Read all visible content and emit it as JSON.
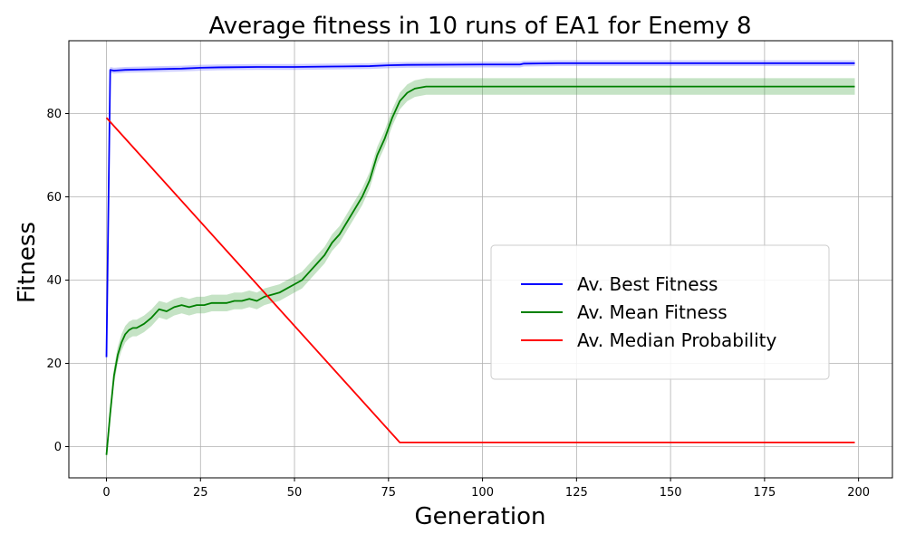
{
  "chart_data": {
    "type": "line",
    "title": "Average fitness in 10 runs of EA1 for Enemy 8",
    "xlabel": "Generation",
    "ylabel": "Fitness",
    "xlim": [
      -10,
      209
    ],
    "ylim": [
      -7.5,
      97.5
    ],
    "xticks": [
      0,
      25,
      50,
      75,
      100,
      125,
      150,
      175,
      200
    ],
    "yticks": [
      0,
      20,
      40,
      60,
      80
    ],
    "grid": true,
    "legend_position": "right",
    "colors": {
      "best": "#0000ff",
      "mean": "#008000",
      "median": "#ff0000",
      "best_band": "#7070ff",
      "mean_band": "#5aaf5a"
    },
    "series": [
      {
        "name": "Av. Best Fitness",
        "key": "best",
        "x": [
          0,
          1,
          2,
          5,
          10,
          15,
          20,
          25,
          30,
          40,
          50,
          60,
          70,
          75,
          80,
          100,
          110,
          111,
          120,
          199
        ],
        "values": [
          21.5,
          90.5,
          90.3,
          90.5,
          90.6,
          90.7,
          90.8,
          91.0,
          91.1,
          91.2,
          91.2,
          91.3,
          91.4,
          91.6,
          91.7,
          91.8,
          91.8,
          92.0,
          92.1,
          92.1
        ],
        "band": 0.7
      },
      {
        "name": "Av. Mean Fitness",
        "key": "mean",
        "x": [
          0,
          1,
          2,
          3,
          4,
          5,
          6,
          7,
          8,
          10,
          12,
          14,
          16,
          18,
          20,
          22,
          24,
          26,
          28,
          30,
          32,
          34,
          36,
          38,
          40,
          42,
          44,
          46,
          48,
          50,
          52,
          54,
          56,
          58,
          60,
          62,
          64,
          66,
          68,
          70,
          72,
          74,
          76,
          78,
          80,
          82,
          85,
          90,
          95,
          100,
          105,
          110,
          115,
          120,
          125,
          130,
          135,
          140,
          145,
          150,
          155,
          160,
          165,
          170,
          175,
          180,
          185,
          190,
          195,
          199
        ],
        "values": [
          -2,
          8,
          17,
          22,
          25,
          27,
          28,
          28.5,
          28.5,
          29.5,
          31,
          33,
          32.5,
          33.5,
          34,
          33.5,
          34,
          34,
          34.5,
          34.5,
          34.5,
          35,
          35,
          35.5,
          35,
          36,
          36.5,
          37,
          38,
          39,
          40,
          42,
          44,
          46,
          49,
          51,
          54,
          57,
          60,
          64,
          70,
          74,
          79,
          83,
          85,
          86,
          86.5,
          86.5,
          86.5,
          86.5,
          86.5,
          86.5,
          86.5,
          86.5,
          86.5,
          86.5,
          86.5,
          86.5,
          86.5,
          86.5,
          86.5,
          86.5,
          86.5,
          86.5,
          86.5,
          86.5,
          86.5,
          86.5,
          86.5,
          86.5
        ],
        "band": 2.0
      },
      {
        "name": "Av. Median Probability",
        "key": "median",
        "x": [
          0,
          78,
          199
        ],
        "values": [
          79,
          1,
          1
        ],
        "band": 0
      }
    ]
  }
}
